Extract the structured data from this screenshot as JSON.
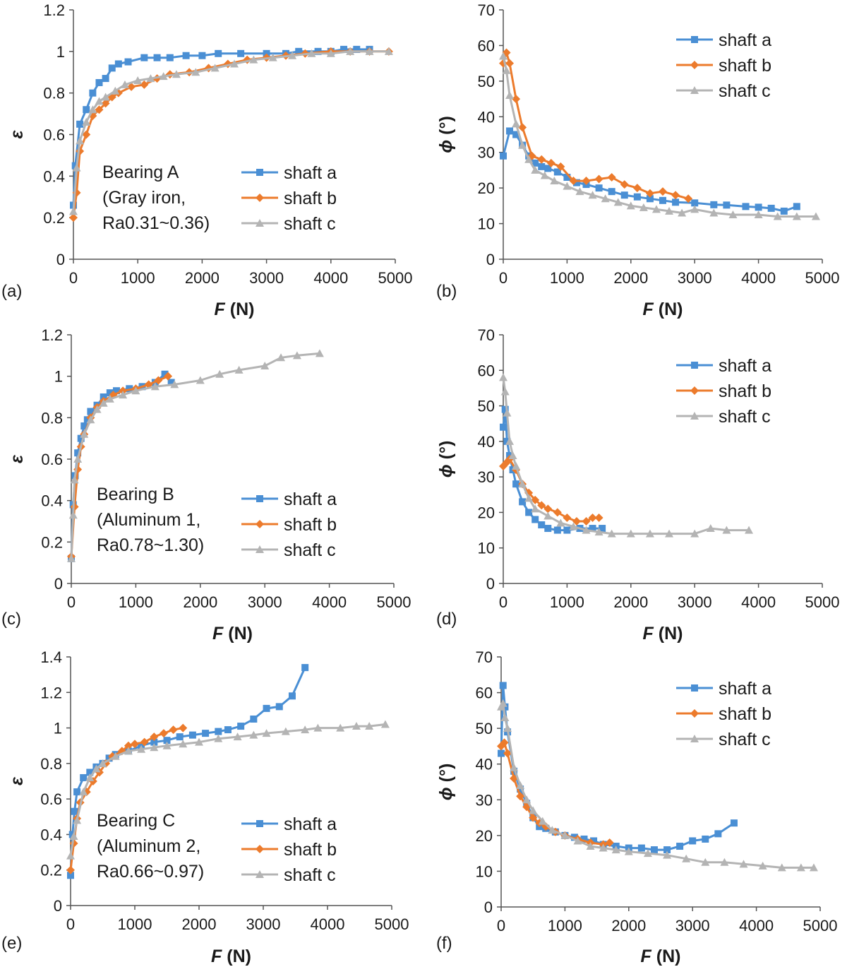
{
  "figure_colors": {
    "shaft_a": "#4a8fd4",
    "shaft_b": "#ec7b2c",
    "shaft_c": "#b4b4b4",
    "axis": "#555555"
  },
  "chart_data": [
    {
      "id": "a",
      "panel_label": "(a)",
      "type": "line",
      "xlabel_var": "F",
      "xlabel_unit": " (N)",
      "ylabel": "ε",
      "xlim": [
        0,
        5000
      ],
      "ylim": [
        0,
        1.2
      ],
      "xticks": [
        0,
        1000,
        2000,
        3000,
        4000,
        5000
      ],
      "yticks": [
        "0",
        "0.2",
        "0.4",
        "0.6",
        "0.8",
        "1",
        "1.2"
      ],
      "annotation": [
        "Bearing A",
        "(Gray iron,",
        "Ra0.31~0.36)"
      ],
      "legend_position": "bottom-right",
      "series": [
        {
          "name": "shaft a",
          "marker": "square",
          "x": [
            0,
            30,
            100,
            200,
            300,
            400,
            500,
            600,
            700,
            850,
            1100,
            1300,
            1500,
            1750,
            2000,
            2250,
            2600,
            3000,
            3300,
            3500,
            3800,
            4000,
            4200,
            4400,
            4600
          ],
          "y": [
            0.26,
            0.45,
            0.65,
            0.72,
            0.8,
            0.85,
            0.87,
            0.92,
            0.94,
            0.95,
            0.97,
            0.97,
            0.97,
            0.98,
            0.98,
            0.99,
            0.99,
            0.99,
            0.99,
            1.0,
            1.0,
            1.0,
            1.01,
            1.01,
            1.01
          ]
        },
        {
          "name": "shaft b",
          "marker": "diamond",
          "x": [
            0,
            50,
            100,
            200,
            300,
            400,
            500,
            600,
            700,
            900,
            1100,
            1300,
            1500,
            1800,
            2100,
            2400,
            2700,
            3000,
            3300,
            3600,
            4000,
            4300,
            4600,
            4900
          ],
          "y": [
            0.2,
            0.32,
            0.52,
            0.6,
            0.69,
            0.72,
            0.75,
            0.78,
            0.8,
            0.83,
            0.84,
            0.87,
            0.89,
            0.9,
            0.92,
            0.94,
            0.96,
            0.97,
            0.98,
            0.99,
            1.0,
            1.0,
            1.0,
            1.0
          ]
        },
        {
          "name": "shaft c",
          "marker": "triangle",
          "x": [
            0,
            50,
            100,
            200,
            300,
            400,
            500,
            650,
            800,
            1000,
            1200,
            1400,
            1600,
            1900,
            2200,
            2500,
            2800,
            3100,
            3400,
            3700,
            4000,
            4300,
            4600,
            4900
          ],
          "y": [
            0.23,
            0.44,
            0.57,
            0.66,
            0.72,
            0.76,
            0.78,
            0.81,
            0.84,
            0.86,
            0.87,
            0.88,
            0.89,
            0.9,
            0.92,
            0.94,
            0.96,
            0.97,
            0.98,
            0.99,
            0.99,
            1.0,
            1.0,
            1.0
          ]
        }
      ]
    },
    {
      "id": "b",
      "panel_label": "(b)",
      "type": "line",
      "xlabel_var": "F",
      "xlabel_unit": " (N)",
      "ylabel_var": "ϕ",
      "ylabel_unit": " (°)",
      "xlim": [
        0,
        5000
      ],
      "ylim": [
        0,
        70
      ],
      "xticks": [
        0,
        1000,
        2000,
        3000,
        4000,
        5000
      ],
      "yticks": [
        "0",
        "10",
        "20",
        "30",
        "40",
        "50",
        "60",
        "70"
      ],
      "legend_position": "top-right",
      "series": [
        {
          "name": "shaft a",
          "marker": "square",
          "x": [
            0,
            100,
            200,
            300,
            400,
            500,
            600,
            700,
            850,
            1000,
            1150,
            1300,
            1500,
            1700,
            1900,
            2100,
            2300,
            2500,
            2700,
            3000,
            3300,
            3500,
            3800,
            4000,
            4200,
            4400,
            4600
          ],
          "y": [
            29,
            36,
            35,
            32,
            29,
            27,
            26,
            25.5,
            24.5,
            23,
            21.5,
            21,
            20,
            19,
            18,
            17.5,
            17,
            16.5,
            16,
            15.8,
            15.3,
            15.2,
            14.8,
            14.6,
            14.3,
            13.5,
            14.8
          ]
        },
        {
          "name": "shaft b",
          "marker": "diamond",
          "x": [
            0,
            50,
            100,
            200,
            300,
            450,
            600,
            750,
            900,
            1100,
            1300,
            1500,
            1700,
            1900,
            2100,
            2300,
            2500,
            2700,
            2900
          ],
          "y": [
            55,
            58,
            55,
            45,
            37,
            29,
            28,
            27,
            26,
            22,
            22,
            22.5,
            23,
            21,
            20,
            18.5,
            19,
            18,
            17
          ]
        },
        {
          "name": "shaft c",
          "marker": "triangle",
          "x": [
            0,
            50,
            100,
            200,
            300,
            400,
            500,
            650,
            800,
            1000,
            1200,
            1400,
            1600,
            1800,
            2000,
            2200,
            2400,
            2600,
            2800,
            3000,
            3300,
            3600,
            4000,
            4300,
            4600,
            4900
          ],
          "y": [
            57,
            53,
            46,
            38,
            32,
            28,
            25,
            23.5,
            22,
            20.5,
            19,
            18,
            17,
            16,
            15,
            14.5,
            14,
            13.5,
            13,
            14,
            13,
            12.5,
            12.5,
            12,
            12,
            12
          ]
        }
      ]
    },
    {
      "id": "c",
      "panel_label": "(c)",
      "type": "line",
      "xlabel_var": "F",
      "xlabel_unit": " (N)",
      "ylabel": "ε",
      "xlim": [
        0,
        5000
      ],
      "ylim": [
        0,
        1.2
      ],
      "xticks": [
        0,
        1000,
        2000,
        3000,
        4000,
        5000
      ],
      "yticks": [
        "0",
        "0.2",
        "0.4",
        "0.6",
        "0.8",
        "1",
        "1.2"
      ],
      "annotation": [
        "Bearing B",
        "(Aluminum 1,",
        "Ra0.78~1.30)"
      ],
      "legend_position": "bottom-right",
      "series": [
        {
          "name": "shaft a",
          "marker": "square",
          "x": [
            0,
            30,
            60,
            100,
            150,
            200,
            250,
            300,
            400,
            500,
            600,
            700,
            900,
            1100,
            1300,
            1450,
            1550
          ],
          "y": [
            0.12,
            0.38,
            0.52,
            0.63,
            0.7,
            0.76,
            0.79,
            0.83,
            0.86,
            0.9,
            0.92,
            0.93,
            0.94,
            0.95,
            0.97,
            1.01,
            0.97
          ]
        },
        {
          "name": "shaft b",
          "marker": "diamond",
          "x": [
            0,
            50,
            100,
            150,
            200,
            300,
            400,
            500,
            650,
            800,
            1000,
            1200,
            1350,
            1500
          ],
          "y": [
            0.13,
            0.37,
            0.55,
            0.66,
            0.72,
            0.8,
            0.85,
            0.88,
            0.91,
            0.93,
            0.94,
            0.96,
            0.98,
            1.0
          ]
        },
        {
          "name": "shaft c",
          "marker": "triangle",
          "x": [
            0,
            30,
            50,
            100,
            200,
            300,
            400,
            500,
            600,
            800,
            1000,
            1300,
            1600,
            2000,
            2300,
            2600,
            3000,
            3250,
            3500,
            3850
          ],
          "y": [
            0.12,
            0.33,
            0.5,
            0.6,
            0.72,
            0.79,
            0.84,
            0.87,
            0.89,
            0.91,
            0.93,
            0.95,
            0.96,
            0.98,
            1.01,
            1.03,
            1.05,
            1.09,
            1.1,
            1.11
          ]
        }
      ]
    },
    {
      "id": "d",
      "panel_label": "(d)",
      "type": "line",
      "xlabel_var": "F",
      "xlabel_unit": " (N)",
      "ylabel_var": "ϕ",
      "ylabel_unit": " (°)",
      "xlim": [
        0,
        5000
      ],
      "ylim": [
        0,
        70
      ],
      "xticks": [
        0,
        1000,
        2000,
        3000,
        4000,
        5000
      ],
      "yticks": [
        "0",
        "10",
        "20",
        "30",
        "40",
        "50",
        "60",
        "70"
      ],
      "legend_position": "top-right",
      "series": [
        {
          "name": "shaft a",
          "marker": "square",
          "x": [
            0,
            30,
            60,
            100,
            150,
            200,
            300,
            400,
            500,
            600,
            700,
            850,
            1000,
            1200,
            1400,
            1550
          ],
          "y": [
            44,
            49,
            40,
            36,
            32,
            28,
            23,
            20,
            18,
            16.5,
            15.5,
            15,
            15,
            15.5,
            15.5,
            15.5
          ]
        },
        {
          "name": "shaft b",
          "marker": "diamond",
          "x": [
            0,
            50,
            100,
            200,
            300,
            400,
            500,
            600,
            700,
            850,
            1000,
            1150,
            1300,
            1400,
            1500
          ],
          "y": [
            33,
            34,
            35,
            32,
            28,
            25.5,
            23.5,
            22,
            21,
            20,
            18.5,
            17.5,
            17.5,
            18.5,
            18.5
          ]
        },
        {
          "name": "shaft c",
          "marker": "triangle",
          "x": [
            0,
            30,
            60,
            100,
            150,
            200,
            300,
            400,
            500,
            700,
            900,
            1100,
            1300,
            1500,
            1700,
            2000,
            2300,
            2600,
            3000,
            3250,
            3500,
            3850
          ],
          "y": [
            58,
            54,
            48,
            40,
            36,
            33,
            28,
            24,
            21,
            19,
            17,
            16,
            15,
            14.5,
            14,
            14,
            14,
            14,
            14,
            15.5,
            15,
            15
          ]
        }
      ]
    },
    {
      "id": "e",
      "panel_label": "(e)",
      "type": "line",
      "xlabel_var": "F",
      "xlabel_unit": " (N)",
      "ylabel": "ε",
      "xlim": [
        0,
        5000
      ],
      "ylim": [
        0,
        1.4
      ],
      "xticks": [
        0,
        1000,
        2000,
        3000,
        4000,
        5000
      ],
      "yticks": [
        "0",
        "0.2",
        "0.4",
        "0.6",
        "0.8",
        "1",
        "1.2",
        "1.4"
      ],
      "annotation": [
        "Bearing C",
        "(Aluminum 2,",
        "Ra0.66~0.97)"
      ],
      "legend_position": "bottom-right",
      "series": [
        {
          "name": "shaft a",
          "marker": "square",
          "x": [
            0,
            30,
            60,
            100,
            200,
            300,
            400,
            500,
            600,
            700,
            900,
            1100,
            1300,
            1500,
            1700,
            1900,
            2100,
            2300,
            2450,
            2650,
            2850,
            3050,
            3250,
            3450,
            3650
          ],
          "y": [
            0.17,
            0.4,
            0.53,
            0.64,
            0.72,
            0.75,
            0.78,
            0.8,
            0.83,
            0.85,
            0.87,
            0.9,
            0.92,
            0.93,
            0.95,
            0.96,
            0.97,
            0.98,
            0.99,
            1.01,
            1.05,
            1.11,
            1.12,
            1.18,
            1.34
          ]
        },
        {
          "name": "shaft b",
          "marker": "diamond",
          "x": [
            0,
            50,
            100,
            150,
            250,
            350,
            450,
            550,
            650,
            800,
            900,
            1000,
            1150,
            1300,
            1450,
            1600,
            1750
          ],
          "y": [
            0.2,
            0.35,
            0.49,
            0.58,
            0.64,
            0.7,
            0.75,
            0.8,
            0.84,
            0.87,
            0.9,
            0.91,
            0.92,
            0.95,
            0.97,
            0.99,
            1.0
          ]
        },
        {
          "name": "shaft c",
          "marker": "triangle",
          "x": [
            0,
            50,
            100,
            200,
            300,
            400,
            500,
            700,
            900,
            1100,
            1300,
            1500,
            1750,
            2000,
            2300,
            2600,
            2850,
            3050,
            3350,
            3650,
            3850,
            4200,
            4450,
            4650,
            4900
          ],
          "y": [
            0.28,
            0.39,
            0.48,
            0.64,
            0.72,
            0.77,
            0.8,
            0.84,
            0.87,
            0.88,
            0.89,
            0.9,
            0.91,
            0.92,
            0.94,
            0.95,
            0.96,
            0.97,
            0.98,
            0.99,
            1.0,
            1.0,
            1.01,
            1.01,
            1.02
          ]
        }
      ]
    },
    {
      "id": "f",
      "panel_label": "(f)",
      "type": "line",
      "xlabel_var": "F",
      "xlabel_unit": " (N)",
      "ylabel_var": "ϕ",
      "ylabel_unit": " (°)",
      "xlim": [
        0,
        5000
      ],
      "ylim": [
        0,
        70
      ],
      "xticks": [
        0,
        1000,
        2000,
        3000,
        4000,
        5000
      ],
      "yticks": [
        "0",
        "10",
        "20",
        "30",
        "40",
        "50",
        "60",
        "70"
      ],
      "legend_position": "top-right",
      "series": [
        {
          "name": "shaft a",
          "marker": "square",
          "x": [
            0,
            30,
            60,
            100,
            200,
            300,
            400,
            500,
            600,
            700,
            850,
            1000,
            1150,
            1300,
            1450,
            1600,
            1800,
            2000,
            2200,
            2400,
            2600,
            2800,
            3000,
            3200,
            3400,
            3650
          ],
          "y": [
            43,
            62,
            56,
            49,
            38,
            33,
            29,
            25,
            22.5,
            22,
            21,
            20,
            19.5,
            19,
            18.5,
            17.5,
            17,
            16.5,
            16.5,
            16,
            16,
            17,
            18.5,
            19,
            20.5,
            23.5
          ]
        },
        {
          "name": "shaft b",
          "marker": "diamond",
          "x": [
            0,
            50,
            100,
            200,
            300,
            400,
            500,
            600,
            700,
            850,
            1000,
            1200,
            1400,
            1600,
            1700
          ],
          "y": [
            45,
            46,
            43,
            36,
            31,
            28,
            25,
            23.5,
            22.5,
            21,
            20,
            19,
            18,
            17.5,
            18
          ]
        },
        {
          "name": "shaft c",
          "marker": "triangle",
          "x": [
            0,
            30,
            60,
            100,
            200,
            300,
            400,
            500,
            650,
            800,
            1000,
            1200,
            1400,
            1600,
            1800,
            2000,
            2300,
            2600,
            2900,
            3200,
            3500,
            3800,
            4100,
            4400,
            4700,
            4900
          ],
          "y": [
            56,
            57,
            53,
            50,
            39,
            34,
            30,
            27,
            24,
            21.5,
            20,
            18.5,
            17,
            16.5,
            16,
            15.5,
            15,
            14.5,
            13.5,
            12.5,
            12.5,
            12,
            11.5,
            11,
            11,
            11
          ]
        }
      ]
    }
  ]
}
